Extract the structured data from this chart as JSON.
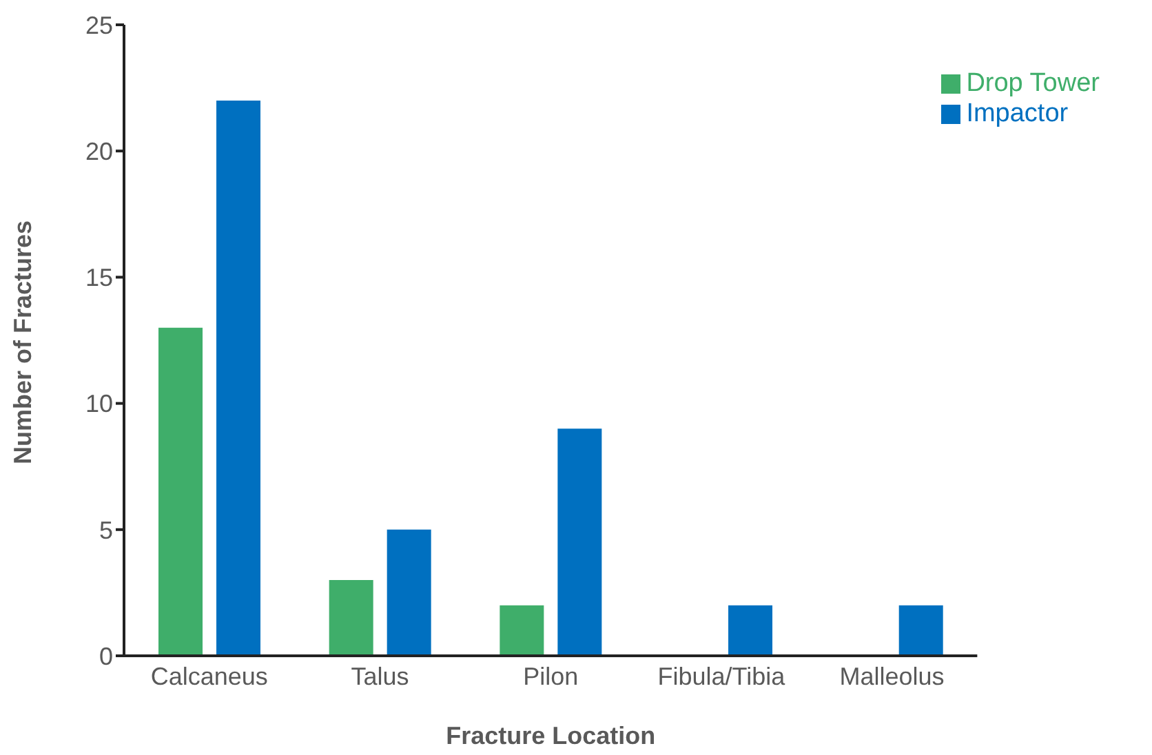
{
  "chart_data": {
    "type": "bar",
    "xlabel": "Fracture Location",
    "ylabel": "Number of Fractures",
    "categories": [
      "Calcaneus",
      "Talus",
      "Pilon",
      "Fibula/Tibia",
      "Malleolus"
    ],
    "series": [
      {
        "name": "Drop Tower",
        "color": "#3fae6a",
        "values": [
          13,
          3,
          2,
          null,
          null
        ]
      },
      {
        "name": "Impactor",
        "color": "#0070c0",
        "values": [
          22,
          5,
          9,
          2,
          2
        ]
      }
    ],
    "ylim": [
      0,
      25
    ],
    "yticks": [
      0,
      5,
      10,
      15,
      20,
      25
    ],
    "grid": false,
    "legend": "top right"
  }
}
